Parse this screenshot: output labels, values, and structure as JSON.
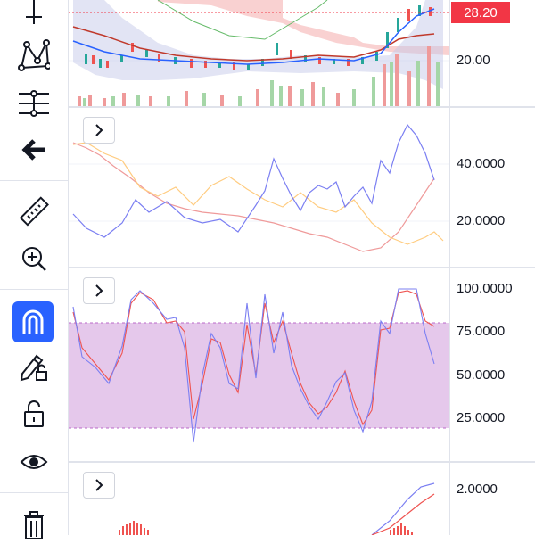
{
  "price_pane": {
    "current_price": "28.20",
    "axis_labels": [
      "20.00"
    ],
    "accent_color": "#f23645"
  },
  "indicator_panes": [
    {
      "axis_labels": [
        "40.0000",
        "20.0000"
      ],
      "collapse_icon": "chevron-right-icon"
    },
    {
      "axis_labels": [
        "100.0000",
        "75.0000",
        "50.0000",
        "25.0000"
      ],
      "collapse_icon": "chevron-right-icon",
      "band_fill": "#e1bee7"
    },
    {
      "axis_labels": [
        "2.0000"
      ],
      "collapse_icon": "chevron-right-icon"
    }
  ],
  "toolbar": {
    "items": [
      {
        "icon": "cursor-cross-icon"
      },
      {
        "icon": "pattern-tool-icon"
      },
      {
        "icon": "fibonacci-tool-icon"
      },
      {
        "icon": "back-arrow-icon"
      },
      {
        "icon": "ruler-icon"
      },
      {
        "icon": "zoom-in-icon"
      },
      {
        "icon": "magnet-icon",
        "active": true,
        "active_color": "#2962ff"
      },
      {
        "icon": "lock-drawings-icon"
      },
      {
        "icon": "unlock-icon"
      },
      {
        "icon": "eye-icon"
      },
      {
        "icon": "trash-icon"
      }
    ]
  }
}
